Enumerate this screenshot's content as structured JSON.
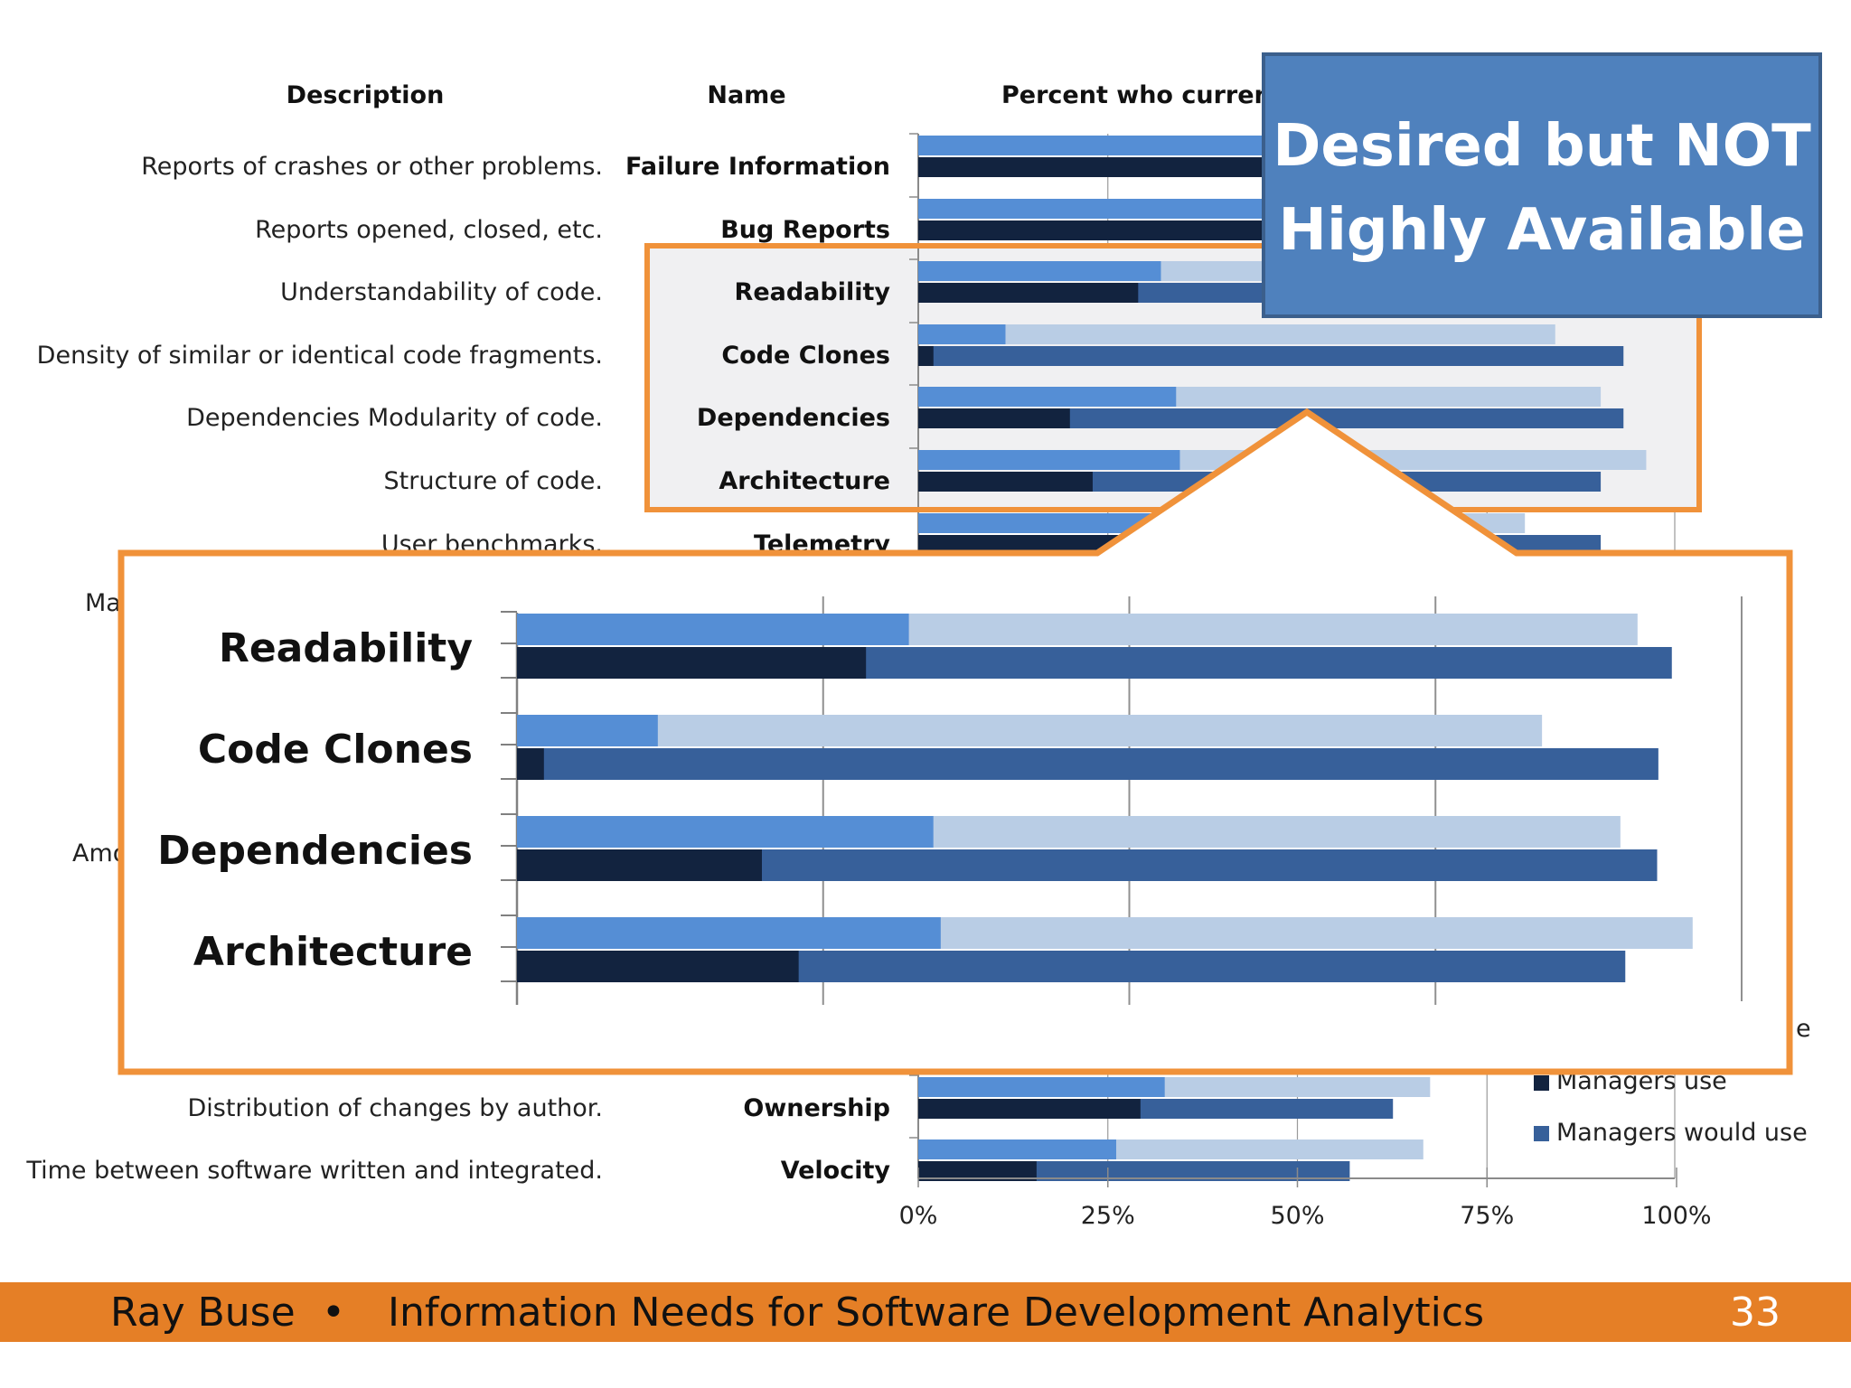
{
  "headers": {
    "description": "Description",
    "name": "Name",
    "percent": "Percent who current"
  },
  "callout": {
    "line1": "Desired but NOT",
    "line2": "Highly Available"
  },
  "footer": {
    "author": "Ray Buse",
    "bullet": "•",
    "title": "Information Needs for Software Development Analytics",
    "page": "33"
  },
  "partial_labels": {
    "left1": "Ma",
    "left2": "Amo",
    "legend_top_partial": "e"
  },
  "legend": [
    {
      "label": "Managers use",
      "color": "#12233f"
    },
    {
      "label": "Managers would use",
      "color": "#37609a"
    }
  ],
  "colors": {
    "orange": "#f0923a",
    "footer_bar": "#e57f26",
    "callout_fill": "#4f81bd",
    "callout_border": "#3b5f8c"
  },
  "chart_data": [
    {
      "type": "bar",
      "orientation": "horizontal",
      "xlim": [
        0,
        100
      ],
      "x_ticks": [
        "0%",
        "25%",
        "50%",
        "75%",
        "100%"
      ],
      "series": [
        {
          "name": "",
          "color": "#558ed5"
        },
        {
          "name": "",
          "color": "#b9cde5"
        },
        {
          "name": "Managers use",
          "color": "#12233f"
        },
        {
          "name": "Managers would use",
          "color": "#37609a"
        }
      ],
      "rows": [
        {
          "description": "Reports of crashes or other problems.",
          "name": "Failure Information",
          "s1": 85,
          "s2": 95,
          "s3": 82,
          "s4": 95
        },
        {
          "description": "Reports opened, closed, etc.",
          "name": "Bug Reports",
          "s1": 82,
          "s2": 93,
          "s3": 80,
          "s4": 94
        },
        {
          "description": "Understandability of code.",
          "name": "Readability",
          "s1": 32,
          "s2": 92,
          "s3": 29,
          "s4": 94
        },
        {
          "description": "Density of similar or identical code fragments.",
          "name": "Code Clones",
          "s1": 11.5,
          "s2": 84,
          "s3": 2,
          "s4": 93
        },
        {
          "description": "Dependencies Modularity of code.",
          "name": "Dependencies",
          "s1": 34,
          "s2": 90,
          "s3": 20,
          "s4": 93
        },
        {
          "description": "Structure of code.",
          "name": "Architecture",
          "s1": 34.5,
          "s2": 96,
          "s3": 23,
          "s4": 90
        },
        {
          "description": "User benchmarks.",
          "name": "Telemetry",
          "s1": 50,
          "s2": 80,
          "s3": 30,
          "s4": 90
        },
        {
          "description": "Distribution of changes by author.",
          "name": "Ownership",
          "s1": 32.5,
          "s2": 67.5,
          "s3": 29.3,
          "s4": 62.6
        },
        {
          "description": "Time between software written and integrated.",
          "name": "Velocity",
          "s1": 26.1,
          "s2": 66.6,
          "s3": 15.6,
          "s4": 56.9
        }
      ]
    },
    {
      "type": "bar",
      "orientation": "horizontal",
      "rows": [
        {
          "name": "Readability",
          "s1": 32,
          "s2": 91.5,
          "s3": 28.5,
          "s4": 94.3
        },
        {
          "name": "Code Clones",
          "s1": 11.5,
          "s2": 83.7,
          "s3": 2.2,
          "s4": 93.2
        },
        {
          "name": "Dependencies",
          "s1": 34,
          "s2": 90.1,
          "s3": 20,
          "s4": 93.1
        },
        {
          "name": "Architecture",
          "s1": 34.6,
          "s2": 96,
          "s3": 23,
          "s4": 90.5
        }
      ]
    }
  ]
}
